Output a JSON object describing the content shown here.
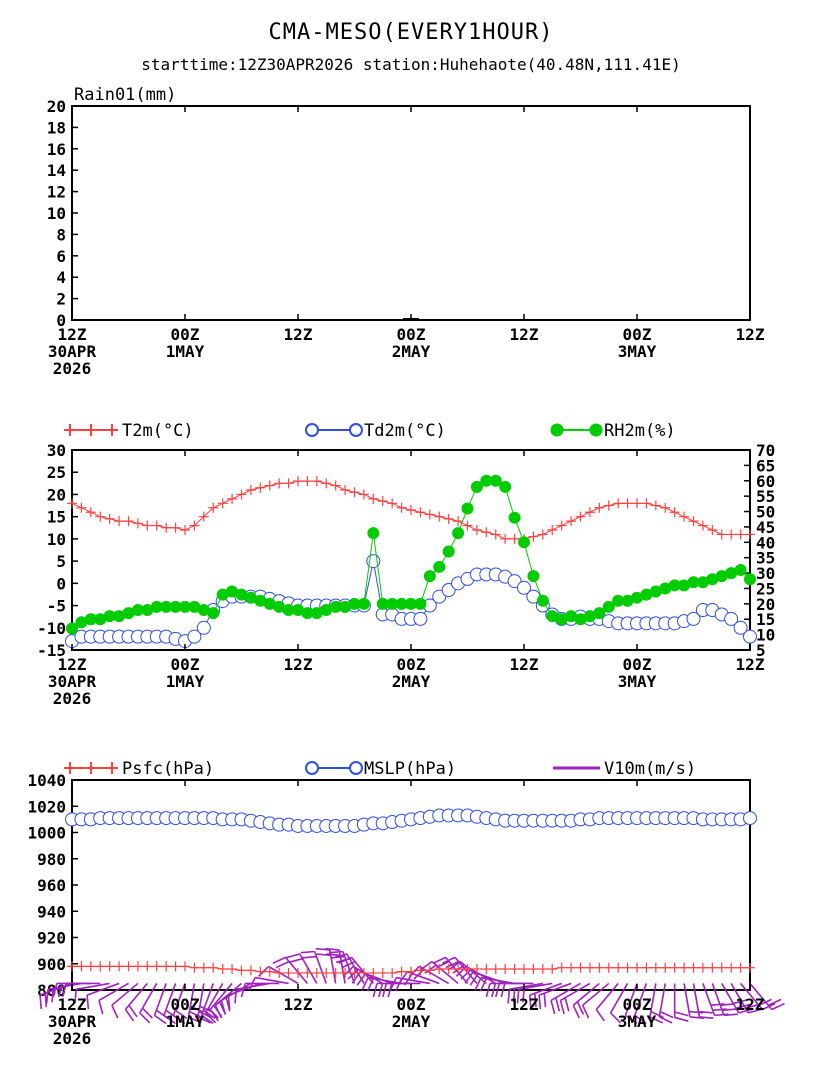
{
  "title": "CMA-MESO(EVERY1HOUR)",
  "subtitle": "starttime:12Z30APR2026    station:Huhehaote(40.48N,111.41E)",
  "x_ticks": [
    {
      "h": 0,
      "lines": [
        "12Z",
        "30APR",
        "2026"
      ]
    },
    {
      "h": 12,
      "lines": [
        "00Z",
        "1MAY"
      ]
    },
    {
      "h": 24,
      "lines": [
        "12Z"
      ]
    },
    {
      "h": 36,
      "lines": [
        "00Z",
        "2MAY"
      ]
    },
    {
      "h": 48,
      "lines": [
        "12Z"
      ]
    },
    {
      "h": 60,
      "lines": [
        "00Z",
        "3MAY"
      ]
    },
    {
      "h": 72,
      "lines": [
        "12Z"
      ]
    }
  ],
  "colors": {
    "t2m": "#ff4040",
    "td2m": "#2e4fe0",
    "rh2m": "#00cc00",
    "psfc": "#ff4040",
    "mslp": "#2e4fe0",
    "v10m": "#a020c0"
  },
  "chart_data": [
    {
      "type": "bar",
      "title": "Rain01(mm)",
      "xlim": [
        0,
        72
      ],
      "ylim": [
        0,
        20
      ],
      "yticks": [
        0,
        2,
        4,
        6,
        8,
        10,
        12,
        14,
        16,
        18,
        20
      ],
      "values": [
        0,
        0,
        0,
        0,
        0,
        0,
        0,
        0,
        0,
        0,
        0,
        0,
        0,
        0,
        0,
        0,
        0,
        0,
        0,
        0,
        0,
        0,
        0,
        0,
        0,
        0,
        0,
        0,
        0,
        0,
        0,
        0,
        0,
        0,
        0,
        0,
        0.1,
        0,
        0,
        0,
        0,
        0,
        0,
        0,
        0,
        0,
        0,
        0,
        0,
        0,
        0,
        0,
        0,
        0,
        0,
        0,
        0,
        0,
        0,
        0,
        0,
        0,
        0,
        0,
        0,
        0,
        0,
        0,
        0,
        0,
        0,
        0,
        0
      ]
    },
    {
      "type": "line",
      "xlim": [
        0,
        72
      ],
      "ylim_left": [
        -15,
        30
      ],
      "yticks_left": [
        -15,
        -10,
        -5,
        0,
        5,
        10,
        15,
        20,
        25,
        30
      ],
      "ylim_right": [
        5,
        70
      ],
      "yticks_right": [
        5,
        10,
        15,
        20,
        25,
        30,
        35,
        40,
        45,
        50,
        55,
        60,
        65,
        70
      ],
      "series": [
        {
          "name": "T2m(°C)",
          "axis": "left",
          "values": [
            18,
            17,
            16,
            15,
            14.5,
            14,
            14,
            13.5,
            13,
            13,
            12.5,
            12.5,
            12,
            13,
            15,
            17,
            18,
            19,
            20,
            21,
            21.5,
            22,
            22.5,
            22.5,
            23,
            23,
            23,
            22.5,
            22,
            21,
            20.5,
            20,
            19,
            18.5,
            18,
            17,
            16.5,
            16,
            15.5,
            15,
            14.5,
            14,
            13,
            12,
            11.5,
            11,
            10,
            10,
            10,
            10.5,
            11,
            12,
            13,
            14,
            15,
            16,
            17,
            17.5,
            18,
            18,
            18,
            18,
            17.5,
            17,
            16,
            15,
            14,
            13,
            12,
            11,
            11,
            11,
            11
          ]
        },
        {
          "name": "Td2m(°C)",
          "axis": "left",
          "values": [
            -13,
            -12,
            -12,
            -12,
            -12,
            -12,
            -12,
            -12,
            -12,
            -12,
            -12,
            -12.5,
            -13,
            -12,
            -10,
            -6,
            -4,
            -3,
            -3,
            -3,
            -3,
            -3.5,
            -4,
            -4.5,
            -5,
            -5,
            -5,
            -5,
            -5,
            -5,
            -5,
            -5,
            5,
            -7,
            -7,
            -8,
            -8,
            -8,
            -5,
            -3,
            -1.5,
            0,
            1,
            2,
            2,
            2,
            1.5,
            0.5,
            -1,
            -3,
            -5,
            -7,
            -8,
            -8,
            -7.5,
            -8,
            -8,
            -8.5,
            -9,
            -9,
            -9,
            -9,
            -9,
            -9,
            -9,
            -8.5,
            -8,
            -6,
            -6,
            -7,
            -8,
            -10,
            -12
          ]
        },
        {
          "name": "RH2m(%)",
          "axis": "right",
          "values": [
            12,
            14,
            15,
            15,
            16,
            16,
            17,
            18,
            18,
            19,
            19,
            19,
            19,
            19,
            18,
            17,
            23,
            24,
            23,
            22,
            21,
            20,
            19,
            18,
            18,
            17,
            17,
            18,
            19,
            19,
            20,
            20,
            43,
            20,
            20,
            20,
            20,
            20,
            29,
            32,
            37,
            43,
            51,
            58,
            60,
            60,
            58,
            48,
            40,
            29,
            21,
            16,
            15,
            16,
            15,
            16,
            17,
            19,
            21,
            21,
            22,
            23,
            24,
            25,
            26,
            26,
            27,
            27,
            28,
            29,
            30,
            31,
            28
          ]
        }
      ]
    },
    {
      "type": "line",
      "xlim": [
        0,
        72
      ],
      "ylim": [
        880,
        1040
      ],
      "yticks": [
        880,
        900,
        920,
        940,
        960,
        980,
        1000,
        1020,
        1040
      ],
      "series": [
        {
          "name": "Psfc(hPa)",
          "values": [
            898,
            898,
            898,
            898,
            898,
            898,
            898,
            898,
            898,
            898,
            898,
            898,
            898,
            897,
            897,
            897,
            896,
            896,
            895,
            895,
            894,
            894,
            893,
            893,
            893,
            893,
            893,
            893,
            893,
            893,
            893,
            893,
            893,
            893,
            893,
            894,
            894,
            895,
            895,
            896,
            896,
            896,
            896,
            896,
            896,
            896,
            896,
            896,
            896,
            896,
            896,
            896,
            897,
            897,
            897,
            897,
            897,
            897,
            897,
            897,
            897,
            897,
            897,
            897,
            897,
            897,
            897,
            897,
            897,
            897,
            897,
            897,
            897
          ]
        },
        {
          "name": "MSLP(hPa)",
          "values": [
            1010,
            1010,
            1010,
            1011,
            1011,
            1011,
            1011,
            1011,
            1011,
            1011,
            1011,
            1011,
            1011,
            1011,
            1011,
            1011,
            1010,
            1010,
            1010,
            1009,
            1008,
            1007,
            1006,
            1006,
            1005,
            1005,
            1005,
            1005,
            1005,
            1005,
            1005,
            1006,
            1007,
            1007,
            1008,
            1009,
            1010,
            1011,
            1012,
            1013,
            1013,
            1013,
            1013,
            1012,
            1011,
            1010,
            1009,
            1009,
            1009,
            1009,
            1009,
            1009,
            1009,
            1009,
            1010,
            1010,
            1011,
            1011,
            1011,
            1011,
            1011,
            1011,
            1011,
            1011,
            1011,
            1011,
            1011,
            1010,
            1010,
            1010,
            1010,
            1010,
            1011
          ]
        },
        {
          "name": "V10m(m/s)",
          "kind": "wind-barbs",
          "speed": [
            6,
            7,
            6,
            5,
            5,
            4,
            4,
            5,
            6,
            7,
            8,
            8,
            9,
            10,
            10,
            9,
            9,
            8,
            7,
            6,
            5,
            5,
            4,
            4,
            5,
            6,
            7,
            8,
            8,
            7,
            6,
            6,
            7,
            7,
            8,
            8,
            8,
            7,
            7,
            6,
            6,
            6,
            6,
            6,
            6,
            7,
            7,
            8,
            9,
            9,
            9,
            8,
            8,
            7,
            7,
            6,
            6,
            5,
            5,
            5,
            5,
            5,
            6,
            7,
            8,
            9,
            9,
            10,
            10,
            10,
            9,
            9,
            8
          ],
          "dir": [
            250,
            260,
            270,
            270,
            260,
            250,
            240,
            230,
            220,
            210,
            200,
            200,
            200,
            190,
            190,
            200,
            210,
            220,
            230,
            240,
            250,
            260,
            270,
            280,
            300,
            320,
            330,
            340,
            350,
            350,
            340,
            330,
            320,
            300,
            290,
            280,
            270,
            270,
            280,
            290,
            300,
            310,
            320,
            320,
            310,
            300,
            290,
            280,
            270,
            270,
            260,
            260,
            250,
            250,
            240,
            240,
            230,
            230,
            220,
            210,
            200,
            200,
            190,
            190,
            180,
            170,
            170,
            160,
            160,
            150,
            150,
            140,
            140
          ]
        }
      ]
    }
  ]
}
